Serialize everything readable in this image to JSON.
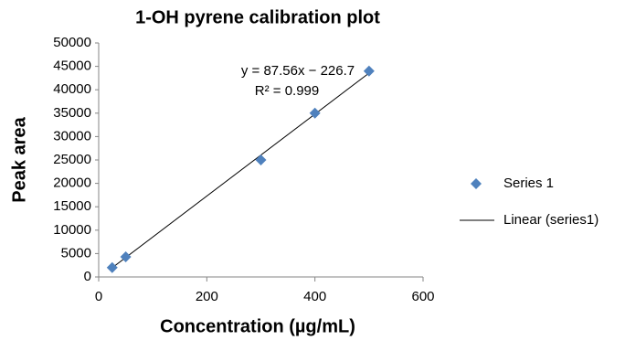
{
  "chart_data": {
    "type": "scatter",
    "title": "1-OH pyrene calibration plot",
    "x_label": "Concentration (µg/mL)",
    "y_label": "Peak area",
    "annotations": [
      "y = 87.56x − 226.7",
      "R² = 0.999"
    ],
    "series": [
      {
        "name": "Series 1",
        "type": "scatter",
        "color": "#4f81bd",
        "x": [
          25,
          50,
          300,
          400,
          500
        ],
        "values": [
          2000,
          4300,
          25000,
          35000,
          44000
        ]
      },
      {
        "name": "Linear (series1)",
        "type": "line",
        "color": "#000000",
        "x": [
          25,
          500
        ],
        "values": [
          1962.3,
          43553.3
        ]
      }
    ],
    "xlim": [
      0,
      600
    ],
    "xticks": [
      0,
      200,
      400,
      600
    ],
    "ylim": [
      0,
      50000
    ],
    "yticks": [
      0,
      5000,
      10000,
      15000,
      20000,
      25000,
      30000,
      35000,
      40000,
      45000,
      50000
    ],
    "grid": false,
    "legend": "right"
  }
}
